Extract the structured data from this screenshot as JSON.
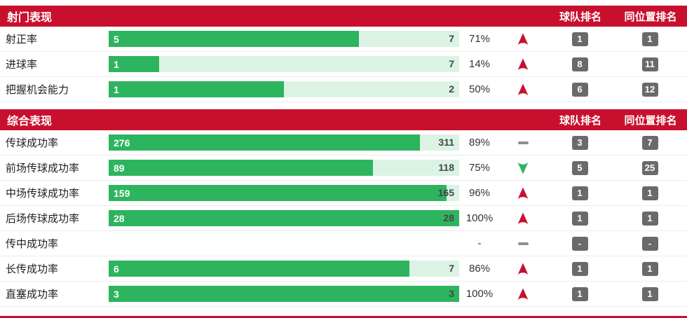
{
  "accent": {
    "header_bg": "#c8102e",
    "bar_fill": "#2db45f",
    "bar_track": "#dbf3e4",
    "badge_bg": "#6a6a6a",
    "up_color": "#c8102e",
    "down_color": "#2db45f",
    "flat_color": "#8f8f8f"
  },
  "sections": [
    {
      "title": "射门表现",
      "col_team_rank": "球队排名",
      "col_pos_rank": "同位置排名",
      "rows": [
        {
          "label": "射正率",
          "value": "5",
          "max": "7",
          "pct_fill": 71.4,
          "percent": "71%",
          "trend": "up",
          "team_rank": "1",
          "pos_rank": "1",
          "has_bar": true
        },
        {
          "label": "进球率",
          "value": "1",
          "max": "7",
          "pct_fill": 14.3,
          "percent": "14%",
          "trend": "up",
          "team_rank": "8",
          "pos_rank": "11",
          "has_bar": true
        },
        {
          "label": "把握机会能力",
          "value": "1",
          "max": "2",
          "pct_fill": 50,
          "percent": "50%",
          "trend": "up",
          "team_rank": "6",
          "pos_rank": "12",
          "has_bar": true
        }
      ]
    },
    {
      "title": "综合表现",
      "col_team_rank": "球队排名",
      "col_pos_rank": "同位置排名",
      "rows": [
        {
          "label": "传球成功率",
          "value": "276",
          "max": "311",
          "pct_fill": 88.7,
          "percent": "89%",
          "trend": "flat",
          "team_rank": "3",
          "pos_rank": "7",
          "has_bar": true
        },
        {
          "label": "前场传球成功率",
          "value": "89",
          "max": "118",
          "pct_fill": 75.4,
          "percent": "75%",
          "trend": "down",
          "team_rank": "5",
          "pos_rank": "25",
          "has_bar": true
        },
        {
          "label": "中场传球成功率",
          "value": "159",
          "max": "165",
          "pct_fill": 96.4,
          "percent": "96%",
          "trend": "up",
          "team_rank": "1",
          "pos_rank": "1",
          "has_bar": true
        },
        {
          "label": "后场传球成功率",
          "value": "28",
          "max": "28",
          "pct_fill": 100,
          "percent": "100%",
          "trend": "up",
          "team_rank": "1",
          "pos_rank": "1",
          "has_bar": true
        },
        {
          "label": "传中成功率",
          "value": "",
          "max": "",
          "pct_fill": 0,
          "percent": "-",
          "trend": "flat",
          "team_rank": "-",
          "pos_rank": "-",
          "has_bar": false
        },
        {
          "label": "长传成功率",
          "value": "6",
          "max": "7",
          "pct_fill": 85.7,
          "percent": "86%",
          "trend": "up",
          "team_rank": "1",
          "pos_rank": "1",
          "has_bar": true
        },
        {
          "label": "直塞成功率",
          "value": "3",
          "max": "3",
          "pct_fill": 100,
          "percent": "100%",
          "trend": "up",
          "team_rank": "1",
          "pos_rank": "1",
          "has_bar": true
        }
      ]
    }
  ],
  "chart_data": [
    {
      "type": "bar",
      "title": "射门表现",
      "categories": [
        "射正率",
        "进球率",
        "把握机会能力"
      ],
      "series": [
        {
          "name": "value",
          "values": [
            5,
            1,
            1
          ]
        },
        {
          "name": "total",
          "values": [
            7,
            7,
            2
          ]
        }
      ],
      "percent": [
        "71%",
        "14%",
        "50%"
      ],
      "trend": [
        "up",
        "up",
        "up"
      ],
      "team_rank": [
        "1",
        "8",
        "6"
      ],
      "position_rank": [
        "1",
        "11",
        "12"
      ],
      "legend": [
        "球队排名",
        "同位置排名"
      ]
    },
    {
      "type": "bar",
      "title": "综合表现",
      "categories": [
        "传球成功率",
        "前场传球成功率",
        "中场传球成功率",
        "后场传球成功率",
        "传中成功率",
        "长传成功率",
        "直塞成功率"
      ],
      "series": [
        {
          "name": "value",
          "values": [
            276,
            89,
            159,
            28,
            null,
            6,
            3
          ]
        },
        {
          "name": "total",
          "values": [
            311,
            118,
            165,
            28,
            null,
            7,
            3
          ]
        }
      ],
      "percent": [
        "89%",
        "75%",
        "96%",
        "100%",
        "-",
        "86%",
        "100%"
      ],
      "trend": [
        "flat",
        "down",
        "up",
        "up",
        "flat",
        "up",
        "up"
      ],
      "team_rank": [
        "3",
        "5",
        "1",
        "1",
        "-",
        "1",
        "1"
      ],
      "position_rank": [
        "7",
        "25",
        "1",
        "1",
        "-",
        "1",
        "1"
      ],
      "legend": [
        "球队排名",
        "同位置排名"
      ]
    }
  ]
}
